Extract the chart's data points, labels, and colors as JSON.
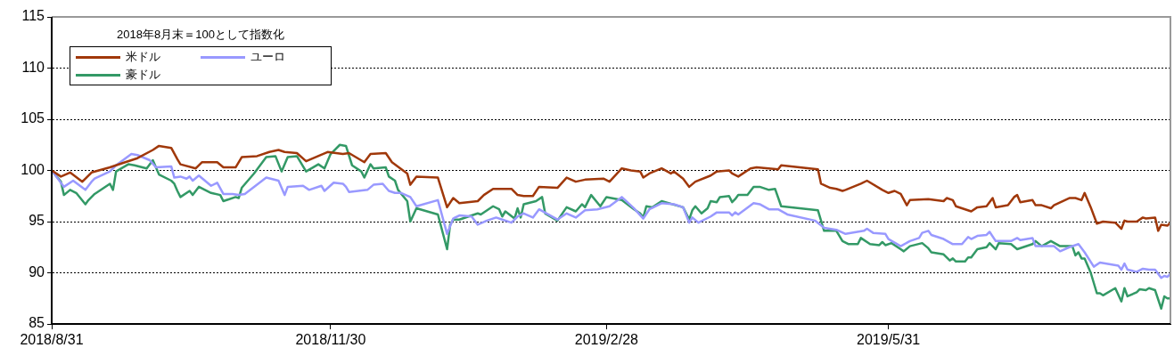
{
  "chart_data": {
    "type": "line",
    "legend_title": "2018年8月末＝100として指数化",
    "legend": "top left",
    "grid": "y",
    "marker": "none",
    "line_style": "solid",
    "xlim": [
      "2018-08-31",
      "2019-08-31"
    ],
    "xticks": [
      {
        "value": "2018-08-31",
        "label": "2018/8/31"
      },
      {
        "value": "2018-11-30",
        "label": "2018/11/30"
      },
      {
        "value": "2019-02-28",
        "label": "2019/2/28"
      },
      {
        "value": "2019-05-31",
        "label": "2019/5/31"
      }
    ],
    "ylim": [
      85,
      115
    ],
    "yticks": [
      85,
      90,
      95,
      100,
      105,
      110,
      115
    ],
    "series": [
      {
        "name": "米ドル",
        "color": "#a0380a",
        "x": [
          "2018-08-31",
          "2018-09-03",
          "2018-09-06",
          "2018-09-10",
          "2018-09-13",
          "2018-09-19",
          "2018-09-24",
          "2018-09-28",
          "2018-10-03",
          "2018-10-05",
          "2018-10-09",
          "2018-10-11",
          "2018-10-12",
          "2018-10-17",
          "2018-10-19",
          "2018-10-24",
          "2018-10-26",
          "2018-10-30",
          "2018-11-01",
          "2018-11-06",
          "2018-11-10",
          "2018-11-13",
          "2018-11-15",
          "2018-11-19",
          "2018-11-22",
          "2018-11-29",
          "2018-12-04",
          "2018-12-06",
          "2018-12-11",
          "2018-12-13",
          "2018-12-18",
          "2018-12-20",
          "2018-12-25",
          "2018-12-26",
          "2018-12-28",
          "2019-01-04",
          "2019-01-07",
          "2019-01-09",
          "2019-01-11",
          "2019-01-17",
          "2019-01-19",
          "2019-01-22",
          "2019-01-28",
          "2019-01-30",
          "2019-02-01",
          "2019-02-04",
          "2019-02-06",
          "2019-02-12",
          "2019-02-15",
          "2019-02-18",
          "2019-02-21",
          "2019-02-27",
          "2019-03-01",
          "2019-03-05",
          "2019-03-08",
          "2019-03-11",
          "2019-03-12",
          "2019-03-14",
          "2019-03-18",
          "2019-03-21",
          "2019-03-22",
          "2019-03-25",
          "2019-03-27",
          "2019-03-29",
          "2019-04-03",
          "2019-04-05",
          "2019-04-09",
          "2019-04-10",
          "2019-04-12",
          "2019-04-16",
          "2019-04-18",
          "2019-04-25",
          "2019-04-26",
          "2019-05-08",
          "2019-05-09",
          "2019-05-12",
          "2019-05-14",
          "2019-05-16",
          "2019-05-17",
          "2019-05-22",
          "2019-05-24",
          "2019-05-29",
          "2019-05-31",
          "2019-06-02",
          "2019-06-04",
          "2019-06-06",
          "2019-06-07",
          "2019-06-13",
          "2019-06-18",
          "2019-06-19",
          "2019-06-21",
          "2019-06-22",
          "2019-06-27",
          "2019-06-29",
          "2019-07-02",
          "2019-07-04",
          "2019-07-05",
          "2019-07-09",
          "2019-07-11",
          "2019-07-12",
          "2019-07-13",
          "2019-07-17",
          "2019-07-18",
          "2019-07-20",
          "2019-07-23",
          "2019-07-24",
          "2019-07-29",
          "2019-07-31",
          "2019-08-02",
          "2019-08-03",
          "2019-08-05",
          "2019-08-07",
          "2019-08-09",
          "2019-08-13",
          "2019-08-15",
          "2019-08-16",
          "2019-08-17",
          "2019-08-20",
          "2019-08-22",
          "2019-08-23",
          "2019-08-26",
          "2019-08-27",
          "2019-08-28",
          "2019-08-30",
          "2019-08-31"
        ],
        "values": [
          100,
          99.4,
          99.8,
          98.9,
          99.8,
          100.3,
          100.8,
          101.2,
          102.0,
          102.4,
          102.2,
          101.1,
          100.6,
          100.2,
          100.8,
          100.8,
          100.3,
          100.3,
          101.3,
          101.4,
          101.8,
          102.0,
          101.8,
          101.7,
          100.9,
          101.8,
          101.6,
          101.7,
          100.8,
          101.6,
          101.7,
          100.8,
          99.7,
          98.6,
          99.4,
          99.3,
          96.4,
          97.3,
          96.8,
          97.0,
          97.6,
          98.2,
          98.2,
          97.6,
          97.5,
          97.5,
          98.4,
          98.3,
          99.3,
          98.9,
          99.1,
          99.2,
          98.9,
          100.2,
          100.0,
          99.9,
          99.3,
          99.7,
          100.2,
          99.7,
          99.9,
          99.2,
          98.4,
          98.9,
          99.5,
          99.9,
          100.0,
          99.7,
          99.4,
          100.2,
          100.3,
          100.1,
          100.5,
          100.1,
          98.7,
          98.3,
          98.2,
          98.0,
          98.1,
          98.7,
          99.0,
          98.1,
          97.8,
          98.0,
          97.7,
          96.6,
          97.1,
          97.2,
          97.0,
          97.3,
          97.1,
          96.5,
          96.0,
          96.4,
          96.5,
          97.3,
          96.4,
          96.6,
          97.4,
          97.6,
          96.9,
          97.1,
          96.6,
          96.6,
          96.3,
          96.6,
          97.3,
          97.3,
          97.1,
          97.8,
          96.4,
          94.8,
          95.0,
          94.9,
          94.3,
          95.1,
          95.0,
          95.0,
          95.4,
          95.3,
          95.4,
          94.1,
          94.7,
          94.6,
          94.9
        ]
      },
      {
        "name": "ユーロ",
        "color": "#9999ff",
        "x": [
          "2018-08-31",
          "2018-09-04",
          "2018-09-07",
          "2018-09-11",
          "2018-09-13",
          "2018-09-14",
          "2018-09-19",
          "2018-09-21",
          "2018-09-26",
          "2018-09-28",
          "2018-10-02",
          "2018-10-04",
          "2018-10-09",
          "2018-10-10",
          "2018-10-12",
          "2018-10-14",
          "2018-10-15",
          "2018-10-16",
          "2018-10-18",
          "2018-10-22",
          "2018-10-24",
          "2018-10-26",
          "2018-10-29",
          "2018-10-31",
          "2018-11-02",
          "2018-11-09",
          "2018-11-13",
          "2018-11-15",
          "2018-11-16",
          "2018-11-21",
          "2018-11-23",
          "2018-11-27",
          "2018-11-28",
          "2018-12-01",
          "2018-12-04",
          "2018-12-05",
          "2018-12-06",
          "2018-12-12",
          "2018-12-14",
          "2018-12-17",
          "2018-12-19",
          "2018-12-21",
          "2018-12-23",
          "2018-12-26",
          "2018-12-28",
          "2019-01-04",
          "2019-01-07",
          "2019-01-09",
          "2019-01-11",
          "2019-01-15",
          "2019-01-17",
          "2019-01-20",
          "2019-01-23",
          "2019-01-25",
          "2019-01-28",
          "2019-01-30",
          "2019-02-01",
          "2019-02-04",
          "2019-02-06",
          "2019-02-09",
          "2019-02-12",
          "2019-02-15",
          "2019-02-18",
          "2019-02-21",
          "2019-02-25",
          "2019-03-01",
          "2019-03-05",
          "2019-03-09",
          "2019-03-12",
          "2019-03-14",
          "2019-03-18",
          "2019-03-22",
          "2019-03-25",
          "2019-03-27",
          "2019-03-28",
          "2019-03-30",
          "2019-04-03",
          "2019-04-05",
          "2019-04-09",
          "2019-04-10",
          "2019-04-11",
          "2019-04-12",
          "2019-04-17",
          "2019-04-19",
          "2019-04-22",
          "2019-04-25",
          "2019-04-28",
          "2019-05-07",
          "2019-05-10",
          "2019-05-14",
          "2019-05-17",
          "2019-05-23",
          "2019-05-24",
          "2019-05-26",
          "2019-05-30",
          "2019-05-31",
          "2019-06-04",
          "2019-06-07",
          "2019-06-10",
          "2019-06-11",
          "2019-06-13",
          "2019-06-14",
          "2019-06-18",
          "2019-06-21",
          "2019-06-24",
          "2019-06-26",
          "2019-06-27",
          "2019-06-29",
          "2019-07-02",
          "2019-07-03",
          "2019-07-05",
          "2019-07-10",
          "2019-07-12",
          "2019-07-13",
          "2019-07-17",
          "2019-07-18",
          "2019-07-22",
          "2019-07-24",
          "2019-07-26",
          "2019-07-29",
          "2019-08-01",
          "2019-08-03",
          "2019-08-06",
          "2019-08-08",
          "2019-08-14",
          "2019-08-15",
          "2019-08-16",
          "2019-08-17",
          "2019-08-20",
          "2019-08-22",
          "2019-08-24",
          "2019-08-26",
          "2019-08-28",
          "2019-08-29",
          "2019-08-30",
          "2019-08-31"
        ],
        "values": [
          100,
          98.4,
          99.0,
          98.1,
          98.9,
          99.2,
          99.9,
          100.5,
          101.6,
          101.5,
          101.0,
          100.3,
          100.4,
          99.3,
          99.4,
          99.2,
          99.4,
          99.0,
          99.5,
          98.5,
          98.8,
          97.7,
          97.7,
          97.6,
          97.7,
          99.3,
          99.0,
          97.6,
          98.4,
          98.5,
          98.1,
          98.5,
          98.0,
          98.8,
          98.7,
          98.4,
          97.9,
          98.1,
          98.6,
          98.7,
          98.0,
          97.8,
          97.8,
          97.4,
          96.5,
          97.1,
          93.8,
          95.3,
          95.6,
          95.5,
          94.7,
          95.1,
          95.4,
          95.2,
          94.9,
          95.5,
          95.8,
          95.4,
          96.2,
          95.7,
          95.2,
          95.8,
          95.4,
          96.1,
          96.2,
          96.5,
          97.4,
          96.3,
          95.3,
          96.2,
          96.8,
          96.7,
          96.4,
          94.9,
          95.4,
          94.9,
          95.5,
          95.9,
          95.9,
          95.6,
          95.9,
          95.7,
          96.8,
          96.7,
          96.2,
          96.2,
          95.7,
          95.1,
          94.4,
          94.2,
          93.8,
          94.1,
          94.3,
          93.9,
          93.8,
          93.3,
          92.6,
          93.1,
          93.4,
          93.9,
          94.1,
          93.7,
          93.3,
          92.8,
          92.8,
          93.5,
          93.3,
          93.6,
          93.7,
          94.0,
          93.1,
          93.1,
          93.4,
          93.2,
          93.4,
          92.6,
          92.6,
          92.6,
          92.1,
          92.5,
          92.8,
          92.0,
          90.6,
          91.0,
          90.7,
          90.3,
          90.9,
          90.3,
          90.1,
          90.4,
          90.3,
          90.3,
          89.5,
          89.7,
          89.6,
          89.9
        ]
      },
      {
        "name": "豪ドル",
        "color": "#339966",
        "x": [
          "2018-08-31",
          "2018-09-03",
          "2018-09-04",
          "2018-09-06",
          "2018-09-08",
          "2018-09-11",
          "2018-09-12",
          "2018-09-14",
          "2018-09-19",
          "2018-09-20",
          "2018-09-21",
          "2018-09-25",
          "2018-09-27",
          "2018-10-01",
          "2018-10-03",
          "2018-10-05",
          "2018-10-09",
          "2018-10-10",
          "2018-10-11",
          "2018-10-12",
          "2018-10-15",
          "2018-10-16",
          "2018-10-18",
          "2018-10-22",
          "2018-10-25",
          "2018-10-26",
          "2018-10-30",
          "2018-10-31",
          "2018-11-01",
          "2018-11-05",
          "2018-11-09",
          "2018-11-12",
          "2018-11-14",
          "2018-11-16",
          "2018-11-19",
          "2018-11-22",
          "2018-11-26",
          "2018-11-28",
          "2018-11-30",
          "2018-12-03",
          "2018-12-05",
          "2018-12-07",
          "2018-12-10",
          "2018-12-11",
          "2018-12-13",
          "2018-12-14",
          "2018-12-18",
          "2018-12-19",
          "2018-12-21",
          "2018-12-22",
          "2018-12-25",
          "2018-12-26",
          "2018-12-28",
          "2019-01-04",
          "2019-01-07",
          "2019-01-08",
          "2019-01-09",
          "2019-01-11",
          "2019-01-17",
          "2019-01-18",
          "2019-01-22",
          "2019-01-24",
          "2019-01-25",
          "2019-01-26",
          "2019-01-29",
          "2019-01-30",
          "2019-01-31",
          "2019-02-01",
          "2019-02-05",
          "2019-02-07",
          "2019-02-08",
          "2019-02-12",
          "2019-02-15",
          "2019-02-18",
          "2019-02-20",
          "2019-02-21",
          "2019-02-23",
          "2019-02-26",
          "2019-02-28",
          "2019-03-05",
          "2019-03-09",
          "2019-03-11",
          "2019-03-12",
          "2019-03-13",
          "2019-03-15",
          "2019-03-18",
          "2019-03-25",
          "2019-03-27",
          "2019-03-28",
          "2019-03-29",
          "2019-03-31",
          "2019-04-02",
          "2019-04-03",
          "2019-04-05",
          "2019-04-06",
          "2019-04-09",
          "2019-04-10",
          "2019-04-11",
          "2019-04-12",
          "2019-04-15",
          "2019-04-17",
          "2019-04-19",
          "2019-04-22",
          "2019-04-24",
          "2019-04-26",
          "2019-05-08",
          "2019-05-10",
          "2019-05-14",
          "2019-05-16",
          "2019-05-18",
          "2019-05-21",
          "2019-05-22",
          "2019-05-25",
          "2019-05-28",
          "2019-05-29",
          "2019-05-30",
          "2019-06-01",
          "2019-06-03",
          "2019-06-04",
          "2019-06-05",
          "2019-06-07",
          "2019-06-11",
          "2019-06-13",
          "2019-06-14",
          "2019-06-18",
          "2019-06-20",
          "2019-06-21",
          "2019-06-22",
          "2019-06-25",
          "2019-06-26",
          "2019-06-27",
          "2019-06-29",
          "2019-07-02",
          "2019-07-03",
          "2019-07-05",
          "2019-07-06",
          "2019-07-10",
          "2019-07-12",
          "2019-07-17",
          "2019-07-18",
          "2019-07-20",
          "2019-07-23",
          "2019-07-26",
          "2019-07-29",
          "2019-07-30",
          "2019-07-31",
          "2019-08-01",
          "2019-08-02",
          "2019-08-03",
          "2019-08-05",
          "2019-08-07",
          "2019-08-08",
          "2019-08-09",
          "2019-08-13",
          "2019-08-15",
          "2019-08-16",
          "2019-08-17",
          "2019-08-20",
          "2019-08-21",
          "2019-08-23",
          "2019-08-24",
          "2019-08-26",
          "2019-08-28",
          "2019-08-29",
          "2019-08-30",
          "2019-08-31"
        ],
        "values": [
          100,
          98.9,
          97.6,
          98.1,
          97.8,
          96.7,
          97.1,
          97.7,
          98.7,
          98.1,
          99.9,
          100.6,
          100.5,
          100.2,
          101.0,
          99.6,
          99.0,
          98.7,
          98.0,
          97.4,
          98.0,
          97.6,
          98.4,
          97.8,
          97.6,
          97.0,
          97.4,
          97.3,
          98.3,
          99.7,
          101.3,
          101.4,
          99.9,
          101.3,
          101.4,
          99.9,
          100.6,
          100.2,
          101.6,
          102.5,
          102.4,
          100.5,
          99.9,
          99.3,
          100.6,
          100.2,
          100.3,
          99.4,
          99.0,
          98.1,
          97.0,
          95.0,
          96.3,
          95.7,
          92.3,
          94.7,
          95.2,
          95.2,
          95.8,
          95.7,
          96.5,
          96.2,
          95.5,
          96.0,
          95.3,
          96.3,
          95.4,
          96.7,
          97.0,
          97.4,
          95.8,
          95.1,
          96.4,
          96.0,
          96.7,
          96.4,
          97.6,
          96.5,
          97.4,
          97.1,
          96.2,
          95.8,
          95.4,
          96.5,
          96.4,
          97.0,
          96.4,
          95.2,
          96.1,
          96.5,
          95.8,
          96.3,
          97.0,
          96.9,
          97.4,
          97.5,
          96.9,
          97.2,
          97.6,
          97.6,
          98.4,
          98.4,
          98.1,
          98.2,
          96.5,
          96.1,
          94.1,
          94.1,
          93.1,
          92.8,
          92.8,
          93.4,
          92.8,
          92.7,
          93.0,
          92.7,
          92.9,
          92.5,
          92.3,
          92.1,
          92.6,
          92.9,
          92.4,
          92.0,
          91.8,
          91.2,
          91.4,
          91.1,
          91.1,
          91.5,
          91.5,
          92.3,
          92.5,
          92.9,
          92.3,
          92.9,
          92.8,
          92.3,
          92.8,
          93.1,
          92.6,
          93.1,
          92.6,
          92.6,
          92.6,
          91.7,
          92.0,
          91.4,
          91.4,
          90.0,
          88.0,
          88.0,
          87.8,
          88.5,
          87.2,
          88.5,
          87.7,
          88.1,
          88.4,
          88.3,
          88.5,
          88.3,
          86.5,
          87.7,
          87.5,
          87.5
        ]
      }
    ]
  }
}
